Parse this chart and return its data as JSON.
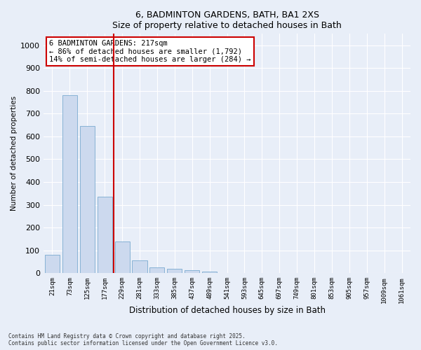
{
  "title1": "6, BADMINTON GARDENS, BATH, BA1 2XS",
  "title2": "Size of property relative to detached houses in Bath",
  "xlabel": "Distribution of detached houses by size in Bath",
  "ylabel": "Number of detached properties",
  "bar_color": "#ccd9ee",
  "bar_edge_color": "#7aaad0",
  "vline_color": "#cc0000",
  "vline_index": 4,
  "annotation_text": "6 BADMINTON GARDENS: 217sqm\n← 86% of detached houses are smaller (1,792)\n14% of semi-detached houses are larger (284) →",
  "categories": [
    "21sqm",
    "73sqm",
    "125sqm",
    "177sqm",
    "229sqm",
    "281sqm",
    "333sqm",
    "385sqm",
    "437sqm",
    "489sqm",
    "541sqm",
    "593sqm",
    "645sqm",
    "697sqm",
    "749sqm",
    "801sqm",
    "853sqm",
    "905sqm",
    "957sqm",
    "1009sqm",
    "1061sqm"
  ],
  "values": [
    80,
    780,
    645,
    335,
    140,
    55,
    25,
    18,
    12,
    8,
    0,
    0,
    0,
    0,
    0,
    0,
    0,
    0,
    0,
    0,
    0
  ],
  "ylim": [
    0,
    1050
  ],
  "yticks": [
    0,
    100,
    200,
    300,
    400,
    500,
    600,
    700,
    800,
    900,
    1000
  ],
  "footer_text": "Contains HM Land Registry data © Crown copyright and database right 2025.\nContains public sector information licensed under the Open Government Licence v3.0.",
  "background_color": "#e8eef8",
  "grid_color": "#ffffff"
}
